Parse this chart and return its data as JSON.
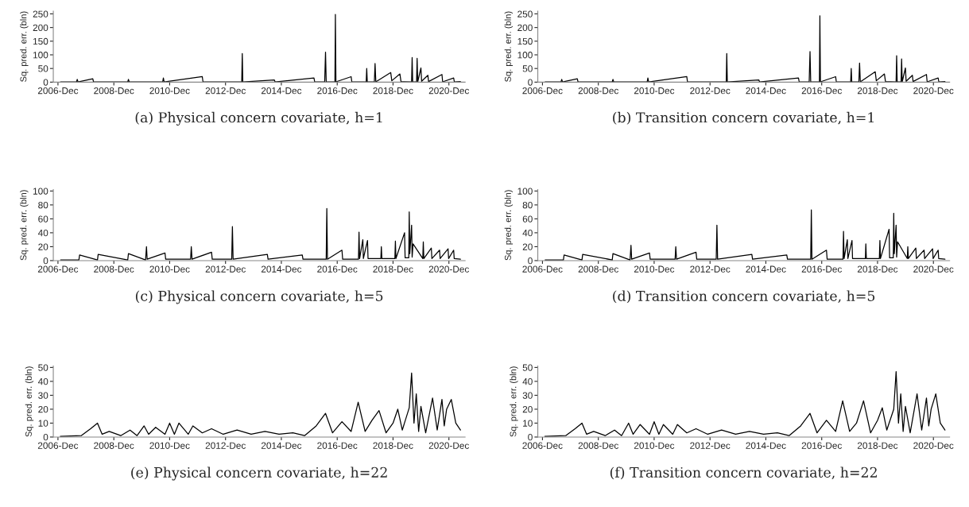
{
  "chart_data": [
    {
      "type": "line",
      "ylabel": "Sq. pred. err. (bln)",
      "annotations": [
        "(a) Physical concern covariate, h=1"
      ],
      "ylim": [
        0,
        260
      ],
      "yticks": [
        0,
        50,
        100,
        150,
        200,
        250
      ],
      "xlim": [
        "2006-10",
        "2021-07"
      ],
      "xticks": [
        {
          "value": "2006-12",
          "label": "2006-Dec"
        },
        {
          "value": "2008-12",
          "label": "2008-Dec"
        },
        {
          "value": "2010-12",
          "label": "2010-Dec"
        },
        {
          "value": "2012-12",
          "label": "2012-Dec"
        },
        {
          "value": "2014-12",
          "label": "2014-Dec"
        },
        {
          "value": "2016-12",
          "label": "2016-Dec"
        },
        {
          "value": "2018-12",
          "label": "2018-Dec"
        },
        {
          "value": "2020-12",
          "label": "2020-Dec"
        }
      ],
      "grid": false,
      "series": [
        {
          "color": "#000000",
          "x": [
            "2007-01-05",
            "2007-08-01",
            "2007-08-10",
            "2007-08-20",
            "2008-03-01",
            "2008-03-10",
            "2009-06-01",
            "2009-06-10",
            "2009-06-20",
            "2010-09-01",
            "2010-09-10",
            "2010-09-20",
            "2012-02-01",
            "2012-02-10",
            "2013-07-01",
            "2013-07-08",
            "2013-07-15",
            "2014-09-01",
            "2014-09-10",
            "2016-02-01",
            "2016-02-10",
            "2016-06-20",
            "2016-07-01",
            "2016-07-10",
            "2016-11-01",
            "2016-11-07",
            "2016-11-14",
            "2017-06-01",
            "2017-06-10",
            "2017-12-15",
            "2017-12-22",
            "2017-12-29",
            "2018-04-01",
            "2018-04-10",
            "2018-04-20",
            "2018-11-01",
            "2018-11-15",
            "2019-03-01",
            "2019-03-15",
            "2019-08-01",
            "2019-08-08",
            "2019-08-15",
            "2019-10-05",
            "2019-10-12",
            "2019-10-20",
            "2019-12-01",
            "2019-12-10",
            "2020-03-01",
            "2020-03-10",
            "2020-09-01",
            "2020-09-10",
            "2021-02-01",
            "2021-02-10",
            "2021-05-01"
          ],
          "values": [
            1,
            1,
            10,
            1,
            12,
            1,
            1,
            10,
            1,
            1,
            15,
            1,
            20,
            1,
            1,
            105,
            1,
            8,
            1,
            15,
            1,
            1,
            110,
            1,
            1,
            248,
            1,
            20,
            1,
            1,
            50,
            1,
            1,
            68,
            1,
            35,
            5,
            30,
            2,
            1,
            90,
            1,
            1,
            87,
            1,
            52,
            3,
            25,
            2,
            28,
            1,
            15,
            1,
            2
          ]
        }
      ]
    },
    {
      "type": "line",
      "ylabel": "Sq. pred. err. (bln)",
      "annotations": [
        "(b) Transition concern covariate, h=1"
      ],
      "ylim": [
        0,
        260
      ],
      "yticks": [
        0,
        50,
        100,
        150,
        200,
        250
      ],
      "xlim": [
        "2006-10",
        "2021-07"
      ],
      "xticks": [
        {
          "value": "2006-12",
          "label": "2006-Dec"
        },
        {
          "value": "2008-12",
          "label": "2008-Dec"
        },
        {
          "value": "2010-12",
          "label": "2010-Dec"
        },
        {
          "value": "2012-12",
          "label": "2012-Dec"
        },
        {
          "value": "2014-12",
          "label": "2014-Dec"
        },
        {
          "value": "2016-12",
          "label": "2016-Dec"
        },
        {
          "value": "2018-12",
          "label": "2018-Dec"
        },
        {
          "value": "2020-12",
          "label": "2020-Dec"
        }
      ],
      "grid": false,
      "series": [
        {
          "color": "#000000",
          "x": [
            "2007-01-05",
            "2007-08-01",
            "2007-08-10",
            "2007-08-20",
            "2008-03-01",
            "2008-03-10",
            "2009-06-01",
            "2009-06-10",
            "2009-06-20",
            "2010-09-01",
            "2010-09-10",
            "2010-09-20",
            "2012-02-01",
            "2012-02-10",
            "2013-07-01",
            "2013-07-08",
            "2013-07-15",
            "2014-09-01",
            "2014-09-10",
            "2016-02-01",
            "2016-02-10",
            "2016-06-20",
            "2016-07-01",
            "2016-07-10",
            "2016-11-01",
            "2016-11-07",
            "2016-11-14",
            "2017-06-01",
            "2017-06-10",
            "2017-12-15",
            "2017-12-22",
            "2017-12-29",
            "2018-04-01",
            "2018-04-10",
            "2018-04-20",
            "2018-11-01",
            "2018-11-15",
            "2019-03-01",
            "2019-03-15",
            "2019-08-01",
            "2019-08-08",
            "2019-08-15",
            "2019-10-05",
            "2019-10-12",
            "2019-10-20",
            "2019-12-01",
            "2019-12-10",
            "2020-03-01",
            "2020-03-10",
            "2020-09-01",
            "2020-09-10",
            "2021-02-01",
            "2021-02-10",
            "2021-05-01"
          ],
          "values": [
            1,
            1,
            10,
            1,
            12,
            1,
            1,
            10,
            1,
            1,
            15,
            1,
            20,
            1,
            1,
            105,
            1,
            8,
            1,
            15,
            1,
            1,
            112,
            1,
            1,
            243,
            1,
            20,
            1,
            1,
            50,
            1,
            1,
            70,
            1,
            38,
            5,
            30,
            2,
            1,
            97,
            1,
            1,
            85,
            1,
            52,
            3,
            25,
            2,
            28,
            1,
            15,
            1,
            2
          ]
        }
      ]
    },
    {
      "type": "line",
      "ylabel": "Sq. pred. err. (bln)",
      "annotations": [
        "(c) Physical concern covariate, h=5"
      ],
      "ylim": [
        0,
        102
      ],
      "yticks": [
        0,
        20,
        40,
        60,
        80,
        100
      ],
      "xlim": [
        "2006-10",
        "2021-07"
      ],
      "xticks": [
        {
          "value": "2006-12",
          "label": "2006-Dec"
        },
        {
          "value": "2008-12",
          "label": "2008-Dec"
        },
        {
          "value": "2010-12",
          "label": "2010-Dec"
        },
        {
          "value": "2012-12",
          "label": "2012-Dec"
        },
        {
          "value": "2014-12",
          "label": "2014-Dec"
        },
        {
          "value": "2016-12",
          "label": "2016-Dec"
        },
        {
          "value": "2018-12",
          "label": "2018-Dec"
        },
        {
          "value": "2020-12",
          "label": "2020-Dec"
        }
      ],
      "grid": false,
      "series": [
        {
          "color": "#000000",
          "x": [
            "2007-01-05",
            "2007-09-01",
            "2007-09-10",
            "2008-05-01",
            "2008-05-10",
            "2009-06-01",
            "2009-06-10",
            "2010-01-20",
            "2010-02-01",
            "2010-02-10",
            "2010-10-01",
            "2010-10-10",
            "2011-09-01",
            "2011-09-10",
            "2011-09-20",
            "2012-06-01",
            "2012-06-10",
            "2013-02-20",
            "2013-03-01",
            "2013-03-10",
            "2014-06-01",
            "2014-06-10",
            "2015-09-01",
            "2015-09-10",
            "2016-07-10",
            "2016-07-18",
            "2016-07-26",
            "2017-02-01",
            "2017-02-10",
            "2017-09-05",
            "2017-09-12",
            "2017-09-20",
            "2017-11-01",
            "2017-11-08",
            "2018-01-01",
            "2018-01-08",
            "2018-06-25",
            "2018-07-01",
            "2018-07-08",
            "2018-12-25",
            "2019-01-01",
            "2019-01-08",
            "2019-05-01",
            "2019-05-08",
            "2019-06-25",
            "2019-07-01",
            "2019-07-08",
            "2019-08-01",
            "2019-08-08",
            "2019-08-20",
            "2019-12-25",
            "2020-01-01",
            "2020-01-08",
            "2020-04-15",
            "2020-04-22",
            "2020-08-01",
            "2020-08-08",
            "2020-11-20",
            "2020-11-27",
            "2021-02-01",
            "2021-02-08",
            "2021-05-01"
          ],
          "values": [
            1,
            1,
            8,
            1,
            9,
            1,
            10,
            1,
            20,
            2,
            11,
            2,
            2,
            20,
            2,
            12,
            2,
            2,
            49,
            2,
            9,
            2,
            8,
            2,
            2,
            75,
            2,
            15,
            2,
            2,
            41,
            3,
            30,
            3,
            29,
            3,
            3,
            20,
            3,
            3,
            28,
            3,
            40,
            4,
            4,
            70,
            10,
            51,
            5,
            24,
            3,
            27,
            3,
            18,
            3,
            15,
            3,
            17,
            3,
            15,
            3,
            2
          ]
        }
      ]
    },
    {
      "type": "line",
      "ylabel": "Sq. pred. err. (bln)",
      "annotations": [
        "(d) Transition concern covariate, h=5"
      ],
      "ylim": [
        0,
        102
      ],
      "yticks": [
        0,
        20,
        40,
        60,
        80,
        100
      ],
      "xlim": [
        "2006-10",
        "2021-07"
      ],
      "xticks": [
        {
          "value": "2006-12",
          "label": "2006-Dec"
        },
        {
          "value": "2008-12",
          "label": "2008-Dec"
        },
        {
          "value": "2010-12",
          "label": "2010-Dec"
        },
        {
          "value": "2012-12",
          "label": "2012-Dec"
        },
        {
          "value": "2014-12",
          "label": "2014-Dec"
        },
        {
          "value": "2016-12",
          "label": "2016-Dec"
        },
        {
          "value": "2018-12",
          "label": "2018-Dec"
        },
        {
          "value": "2020-12",
          "label": "2020-Dec"
        }
      ],
      "grid": false,
      "series": [
        {
          "color": "#000000",
          "x": [
            "2007-01-05",
            "2007-09-01",
            "2007-09-10",
            "2008-05-01",
            "2008-05-10",
            "2009-06-01",
            "2009-06-10",
            "2010-01-20",
            "2010-02-01",
            "2010-02-10",
            "2010-10-01",
            "2010-10-10",
            "2011-09-01",
            "2011-09-10",
            "2011-09-20",
            "2012-06-01",
            "2012-06-10",
            "2013-02-20",
            "2013-03-01",
            "2013-03-10",
            "2014-06-01",
            "2014-06-10",
            "2015-09-01",
            "2015-09-10",
            "2016-07-10",
            "2016-07-18",
            "2016-07-26",
            "2017-02-01",
            "2017-02-10",
            "2017-09-05",
            "2017-09-12",
            "2017-09-20",
            "2017-11-01",
            "2017-11-08",
            "2018-01-01",
            "2018-01-08",
            "2018-06-25",
            "2018-07-01",
            "2018-07-08",
            "2018-12-25",
            "2019-01-01",
            "2019-01-08",
            "2019-05-01",
            "2019-05-08",
            "2019-06-25",
            "2019-07-01",
            "2019-07-08",
            "2019-08-01",
            "2019-08-08",
            "2019-08-20",
            "2019-12-25",
            "2020-01-01",
            "2020-01-08",
            "2020-04-15",
            "2020-04-22",
            "2020-08-01",
            "2020-08-08",
            "2020-11-20",
            "2020-11-27",
            "2021-02-01",
            "2021-02-08",
            "2021-05-01"
          ],
          "values": [
            1,
            1,
            8,
            1,
            9,
            1,
            10,
            1,
            22,
            2,
            11,
            2,
            2,
            20,
            2,
            12,
            2,
            2,
            51,
            2,
            9,
            2,
            8,
            2,
            2,
            73,
            2,
            15,
            2,
            2,
            42,
            3,
            30,
            3,
            29,
            3,
            3,
            24,
            3,
            3,
            29,
            3,
            45,
            4,
            4,
            68,
            10,
            51,
            5,
            27,
            3,
            20,
            3,
            18,
            3,
            15,
            3,
            17,
            3,
            15,
            3,
            2
          ]
        }
      ]
    },
    {
      "type": "line",
      "ylabel": "Sq. pred. err. (bln)",
      "annotations": [
        "(e) Physical concern covariate, h=22"
      ],
      "ylim": [
        0,
        51
      ],
      "yticks": [
        0,
        10,
        20,
        30,
        40,
        50
      ],
      "xlim": [
        "2006-10",
        "2021-07"
      ],
      "xticks": [
        {
          "value": "2006-12",
          "label": "2006-Dec"
        },
        {
          "value": "2008-12",
          "label": "2008-Dec"
        },
        {
          "value": "2010-12",
          "label": "2010-Dec"
        },
        {
          "value": "2012-12",
          "label": "2012-Dec"
        },
        {
          "value": "2014-12",
          "label": "2014-Dec"
        },
        {
          "value": "2016-12",
          "label": "2016-Dec"
        },
        {
          "value": "2018-12",
          "label": "2018-Dec"
        },
        {
          "value": "2020-12",
          "label": "2020-Dec"
        }
      ],
      "grid": false,
      "series": [
        {
          "color": "#000000",
          "x": [
            "2007-01",
            "2007-10",
            "2008-02",
            "2008-05",
            "2008-07",
            "2008-10",
            "2009-03",
            "2009-07",
            "2009-10",
            "2010-01",
            "2010-03",
            "2010-06",
            "2010-10",
            "2010-12",
            "2011-02",
            "2011-04",
            "2011-08",
            "2011-10",
            "2012-02",
            "2012-06",
            "2012-11",
            "2013-05",
            "2013-11",
            "2014-05",
            "2014-11",
            "2015-05",
            "2015-10",
            "2016-03",
            "2016-07",
            "2016-10",
            "2017-02",
            "2017-06",
            "2017-09",
            "2017-12",
            "2018-03",
            "2018-06",
            "2018-09",
            "2018-12",
            "2019-02",
            "2019-04",
            "2019-07",
            "2019-08",
            "2019-09",
            "2019-10",
            "2019-11",
            "2019-12",
            "2020-02",
            "2020-05",
            "2020-07",
            "2020-09",
            "2020-10",
            "2020-11",
            "2021-01",
            "2021-03",
            "2021-05"
          ],
          "values": [
            0.5,
            1,
            6,
            10,
            2,
            4,
            1,
            5,
            1,
            8,
            2,
            7,
            2,
            10,
            2,
            10,
            2,
            8,
            3,
            6,
            2,
            5,
            2,
            4,
            2,
            3,
            1,
            8,
            17,
            3,
            11,
            4,
            25,
            4,
            12,
            19,
            3,
            10,
            20,
            5,
            21,
            46,
            10,
            31,
            4,
            22,
            3,
            28,
            5,
            27,
            8,
            20,
            27,
            10,
            5
          ]
        }
      ]
    },
    {
      "type": "line",
      "ylabel": "Sq. pred. err. (bln)",
      "annotations": [
        "(f) Transition concern covariate, h=22"
      ],
      "ylim": [
        0,
        51
      ],
      "yticks": [
        0,
        10,
        20,
        30,
        40,
        50
      ],
      "xlim": [
        "2006-10",
        "2021-07"
      ],
      "xticks": [
        {
          "value": "2006-12",
          "label": "2006-Dec"
        },
        {
          "value": "2008-12",
          "label": "2008-Dec"
        },
        {
          "value": "2010-12",
          "label": "2010-Dec"
        },
        {
          "value": "2012-12",
          "label": "2012-Dec"
        },
        {
          "value": "2014-12",
          "label": "2014-Dec"
        },
        {
          "value": "2016-12",
          "label": "2016-Dec"
        },
        {
          "value": "2018-12",
          "label": "2018-Dec"
        },
        {
          "value": "2020-12",
          "label": "2020-Dec"
        }
      ],
      "grid": false,
      "series": [
        {
          "color": "#000000",
          "x": [
            "2007-01",
            "2007-10",
            "2008-02",
            "2008-05",
            "2008-07",
            "2008-10",
            "2009-03",
            "2009-07",
            "2009-10",
            "2010-01",
            "2010-03",
            "2010-06",
            "2010-10",
            "2010-12",
            "2011-02",
            "2011-04",
            "2011-08",
            "2011-10",
            "2012-02",
            "2012-06",
            "2012-11",
            "2013-05",
            "2013-11",
            "2014-05",
            "2014-11",
            "2015-05",
            "2015-10",
            "2016-03",
            "2016-07",
            "2016-10",
            "2017-02",
            "2017-06",
            "2017-09",
            "2017-12",
            "2018-03",
            "2018-06",
            "2018-09",
            "2018-12",
            "2019-02",
            "2019-04",
            "2019-07",
            "2019-08",
            "2019-09",
            "2019-10",
            "2019-11",
            "2019-12",
            "2020-02",
            "2020-05",
            "2020-07",
            "2020-09",
            "2020-10",
            "2020-11",
            "2021-01",
            "2021-03",
            "2021-05"
          ],
          "values": [
            0.5,
            1,
            6,
            10,
            2,
            4,
            1,
            5,
            1,
            10,
            2,
            9,
            2,
            11,
            2,
            9,
            2,
            9,
            3,
            6,
            2,
            5,
            2,
            4,
            2,
            3,
            1,
            8,
            17,
            3,
            12,
            4,
            26,
            4,
            10,
            26,
            3,
            12,
            21,
            5,
            20,
            47,
            10,
            31,
            4,
            22,
            3,
            31,
            5,
            28,
            8,
            20,
            31,
            10,
            5
          ]
        }
      ]
    }
  ]
}
